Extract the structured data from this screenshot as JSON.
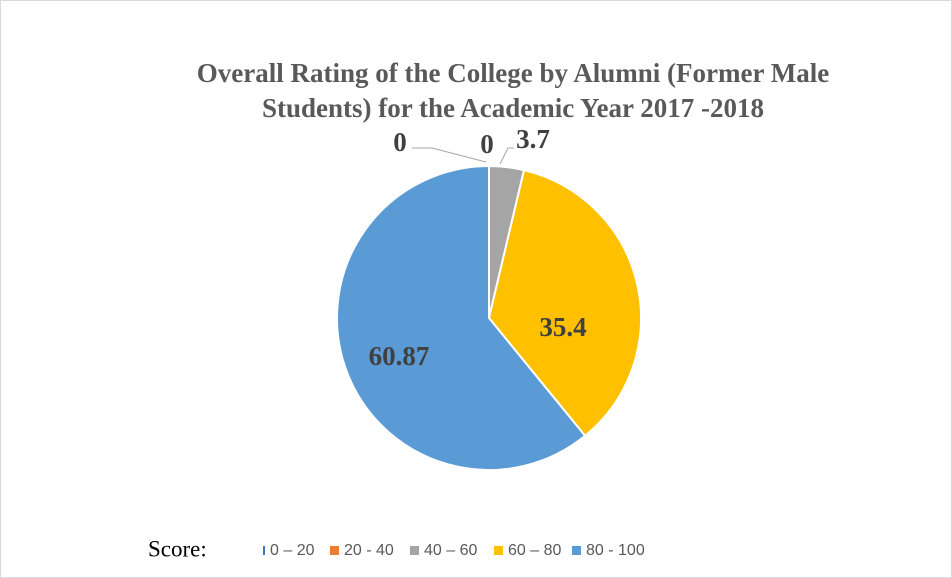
{
  "chart_data": {
    "type": "pie",
    "title": [
      "Overall Rating of the College by Alumni (Former Male",
      "Students) for the Academic Year  2017 -2018"
    ],
    "legend_title": "Score:",
    "categories": [
      "0 – 20",
      "20 - 40",
      "40 – 60",
      "60 – 80",
      "80 - 100"
    ],
    "values": [
      0,
      0,
      3.7,
      35.4,
      60.87
    ],
    "colors": [
      "#4472c4",
      "#ed7d31",
      "#a5a5a5",
      "#ffc000",
      "#5b9bd5"
    ],
    "legend": "bottom"
  }
}
